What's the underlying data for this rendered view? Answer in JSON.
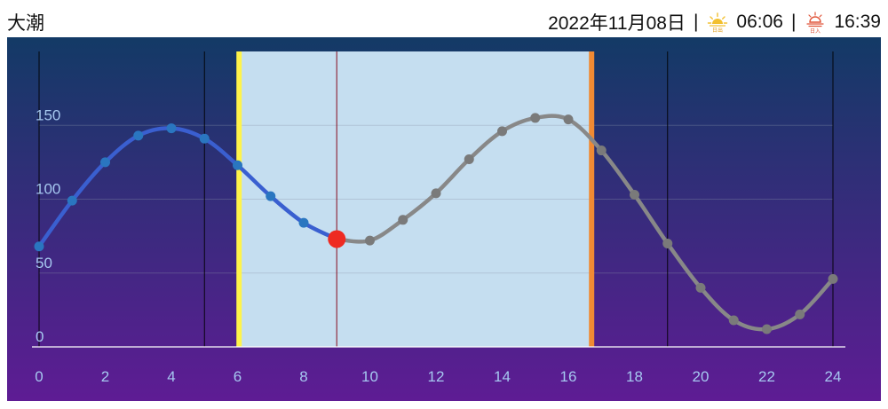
{
  "header": {
    "tide_type": "大潮",
    "date": "2022年11月08日",
    "separator": "|",
    "sunrise_time": "06:06",
    "sunset_time": "16:39",
    "sunrise_icon": "sunrise-icon",
    "sunset_icon": "sunset-icon",
    "sunrise_icon_text": "日出",
    "sunset_icon_text": "日入"
  },
  "chart_data": {
    "type": "line",
    "x": [
      0,
      1,
      2,
      3,
      4,
      5,
      6,
      7,
      8,
      9,
      10,
      11,
      12,
      13,
      14,
      15,
      16,
      17,
      18,
      19,
      20,
      21,
      22,
      23,
      24
    ],
    "values": [
      68,
      99,
      125,
      143,
      148,
      141,
      123,
      102,
      84,
      73,
      72,
      86,
      104,
      127,
      146,
      155,
      154,
      133,
      103,
      70,
      40,
      18,
      12,
      22,
      46
    ],
    "xlim": [
      0,
      24
    ],
    "ylim": [
      0,
      200
    ],
    "x_ticks": [
      0,
      2,
      4,
      6,
      8,
      10,
      12,
      14,
      16,
      18,
      20,
      22,
      24
    ],
    "y_ticks": [
      0,
      50,
      100,
      150
    ],
    "current_hour": 9,
    "daylight_start": 6.1,
    "daylight_end": 16.65,
    "vertical_lines": [
      0,
      5,
      6.1,
      9,
      16.65,
      19,
      24
    ],
    "grid": true,
    "colors": {
      "past_line": "#3a5fd0",
      "past_point": "#2a76c0",
      "future_line": "#888888",
      "future_point": "#7a7a7a",
      "current_point": "#ee2a22",
      "daylight_fill": "#c5def0",
      "sunrise_bar": "#fff34a",
      "sunset_bar": "#f08a33",
      "bg_top": "#133a66",
      "bg_bottom": "#5e1c94",
      "tick_label": "#a6c8f0"
    }
  }
}
